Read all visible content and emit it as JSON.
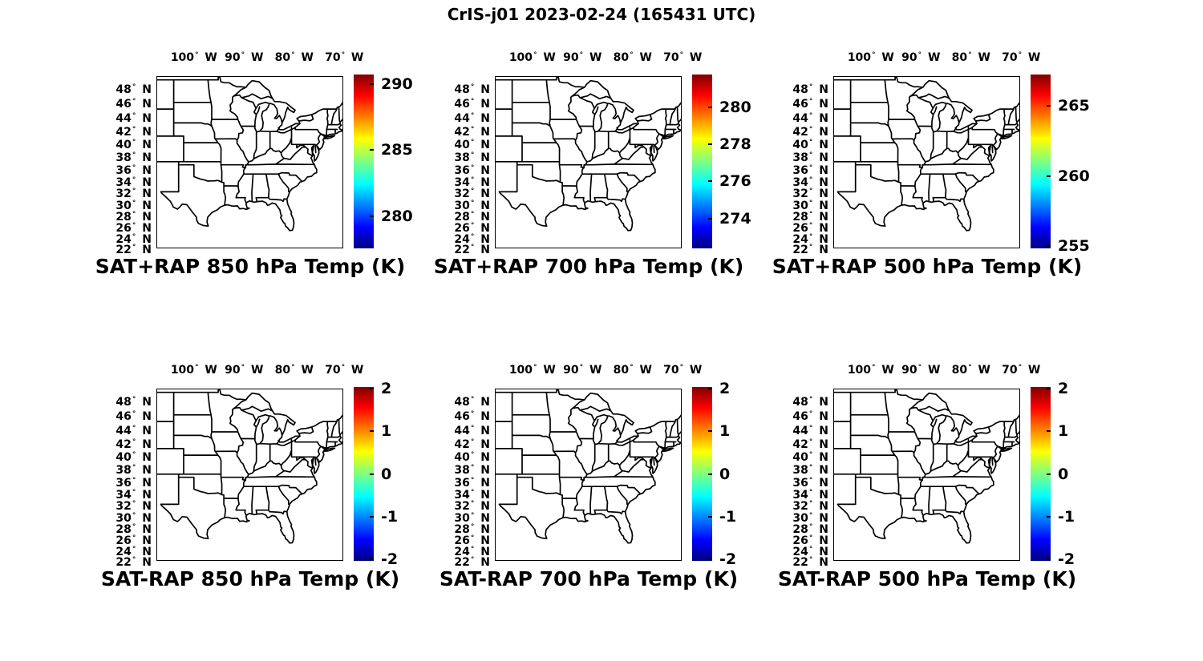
{
  "figure": {
    "title": "CrIS-j01 2023-02-24 (165431 UTC)",
    "background_color": "#ffffff",
    "line_color": "#000000",
    "text_color": "#000000",
    "colormap": "jet"
  },
  "axes": {
    "projection": "mercator",
    "lon_range": [
      -107.5,
      -70.2
    ],
    "lat_range": [
      21.85,
      49.5
    ],
    "lon_unit": "W",
    "lat_unit": "N",
    "lon_ticks": [
      {
        "value": -100,
        "label": "100"
      },
      {
        "value": -90,
        "label": "90"
      },
      {
        "value": -80,
        "label": "80"
      },
      {
        "value": -70,
        "label": "70"
      }
    ],
    "lat_ticks": [
      {
        "value": 48,
        "label": "48"
      },
      {
        "value": 46,
        "label": "46"
      },
      {
        "value": 44,
        "label": "44"
      },
      {
        "value": 42,
        "label": "42"
      },
      {
        "value": 40,
        "label": "40"
      },
      {
        "value": 38,
        "label": "38"
      },
      {
        "value": 36,
        "label": "36"
      },
      {
        "value": 34,
        "label": "34"
      },
      {
        "value": 32,
        "label": "32"
      },
      {
        "value": 30,
        "label": "30"
      },
      {
        "value": 28,
        "label": "28"
      },
      {
        "value": 26,
        "label": "26"
      },
      {
        "value": 24,
        "label": "24"
      },
      {
        "value": 22,
        "label": "22"
      }
    ]
  },
  "panels": [
    {
      "id": "sat-plus-rap-850",
      "row": 0,
      "col": 0,
      "title": "SAT+RAP 850 hPa Temp (K)",
      "colorbar": {
        "min": 277.6,
        "max": 290.7,
        "ticks": [
          {
            "value": 290,
            "label": "290"
          },
          {
            "value": 285,
            "label": "285"
          },
          {
            "value": 280,
            "label": "280"
          }
        ]
      }
    },
    {
      "id": "sat-plus-rap-700",
      "row": 0,
      "col": 1,
      "title": "SAT+RAP 700 hPa Temp (K)",
      "colorbar": {
        "min": 272.4,
        "max": 281.75,
        "ticks": [
          {
            "value": 280,
            "label": "280"
          },
          {
            "value": 278,
            "label": "278"
          },
          {
            "value": 276,
            "label": "276"
          },
          {
            "value": 274,
            "label": "274"
          }
        ]
      }
    },
    {
      "id": "sat-plus-rap-500",
      "row": 0,
      "col": 2,
      "title": "SAT+RAP 500 hPa Temp (K)",
      "colorbar": {
        "min": 254.85,
        "max": 267.2,
        "ticks": [
          {
            "value": 265,
            "label": "265"
          },
          {
            "value": 260,
            "label": "260"
          },
          {
            "value": 255,
            "label": "255"
          }
        ]
      }
    },
    {
      "id": "sat-minus-rap-850",
      "row": 1,
      "col": 0,
      "title": "SAT-RAP 850 hPa Temp (K)",
      "colorbar": {
        "min": -2.04,
        "max": 2.04,
        "ticks": [
          {
            "value": 2,
            "label": "2"
          },
          {
            "value": 1,
            "label": "1"
          },
          {
            "value": 0,
            "label": "0"
          },
          {
            "value": -1,
            "label": "-1"
          },
          {
            "value": -2,
            "label": "-2"
          }
        ]
      }
    },
    {
      "id": "sat-minus-rap-700",
      "row": 1,
      "col": 1,
      "title": "SAT-RAP 700 hPa Temp (K)",
      "colorbar": {
        "min": -2.04,
        "max": 2.04,
        "ticks": [
          {
            "value": 2,
            "label": "2"
          },
          {
            "value": 1,
            "label": "1"
          },
          {
            "value": 0,
            "label": "0"
          },
          {
            "value": -1,
            "label": "-1"
          },
          {
            "value": -2,
            "label": "-2"
          }
        ]
      }
    },
    {
      "id": "sat-minus-rap-500",
      "row": 1,
      "col": 2,
      "title": "SAT-RAP 500 hPa Temp (K)",
      "colorbar": {
        "min": -2.04,
        "max": 2.04,
        "ticks": [
          {
            "value": 2,
            "label": "2"
          },
          {
            "value": 1,
            "label": "1"
          },
          {
            "value": 0,
            "label": "0"
          },
          {
            "value": -1,
            "label": "-1"
          },
          {
            "value": -2,
            "label": "-2"
          }
        ]
      }
    }
  ],
  "chart_data": {
    "type": "map",
    "figure_title": "CrIS-j01 2023-02-24 (165431 UTC)",
    "layout": "2 rows x 3 columns of identical US state-boundary maps, each with a vertical jet colorbar on the right",
    "map_extent": {
      "lon": [
        -107.5,
        -70.2
      ],
      "lat": [
        21.85,
        49.5
      ]
    },
    "lon_tick_labels": [
      "100° W",
      "90° W",
      "80° W",
      "70° W"
    ],
    "lat_tick_labels": [
      "48°N",
      "46°N",
      "44°N",
      "42°N",
      "40°N",
      "38°N",
      "36°N",
      "34°N",
      "32°N",
      "30°N",
      "28°N",
      "26°N",
      "24°N",
      "22°N"
    ],
    "subplots": [
      {
        "title": "SAT+RAP 850 hPa Temp (K)",
        "colorbar_ticks": [
          290,
          285,
          280
        ],
        "colorbar_range_est": [
          277.6,
          290.7
        ],
        "units": "K"
      },
      {
        "title": "SAT+RAP 700 hPa Temp (K)",
        "colorbar_ticks": [
          280,
          278,
          276,
          274
        ],
        "colorbar_range_est": [
          272.4,
          281.75
        ],
        "units": "K"
      },
      {
        "title": "SAT+RAP 500 hPa Temp (K)",
        "colorbar_ticks": [
          265,
          260,
          255
        ],
        "colorbar_range_est": [
          254.85,
          267.2
        ],
        "units": "K"
      },
      {
        "title": "SAT-RAP 850 hPa Temp (K)",
        "colorbar_ticks": [
          2,
          1,
          0,
          -1,
          -2
        ],
        "colorbar_range_est": [
          -2,
          2
        ],
        "units": "K"
      },
      {
        "title": "SAT-RAP 700 hPa Temp (K)",
        "colorbar_ticks": [
          2,
          1,
          0,
          -1,
          -2
        ],
        "colorbar_range_est": [
          -2,
          2
        ],
        "units": "K"
      },
      {
        "title": "SAT-RAP 500 hPa Temp (K)",
        "colorbar_ticks": [
          2,
          1,
          0,
          -1,
          -2
        ],
        "colorbar_range_est": [
          -2,
          2
        ],
        "units": "K"
      }
    ],
    "note": "Maps show black US state boundaries on white; no shaded data field is visible inside the maps."
  }
}
